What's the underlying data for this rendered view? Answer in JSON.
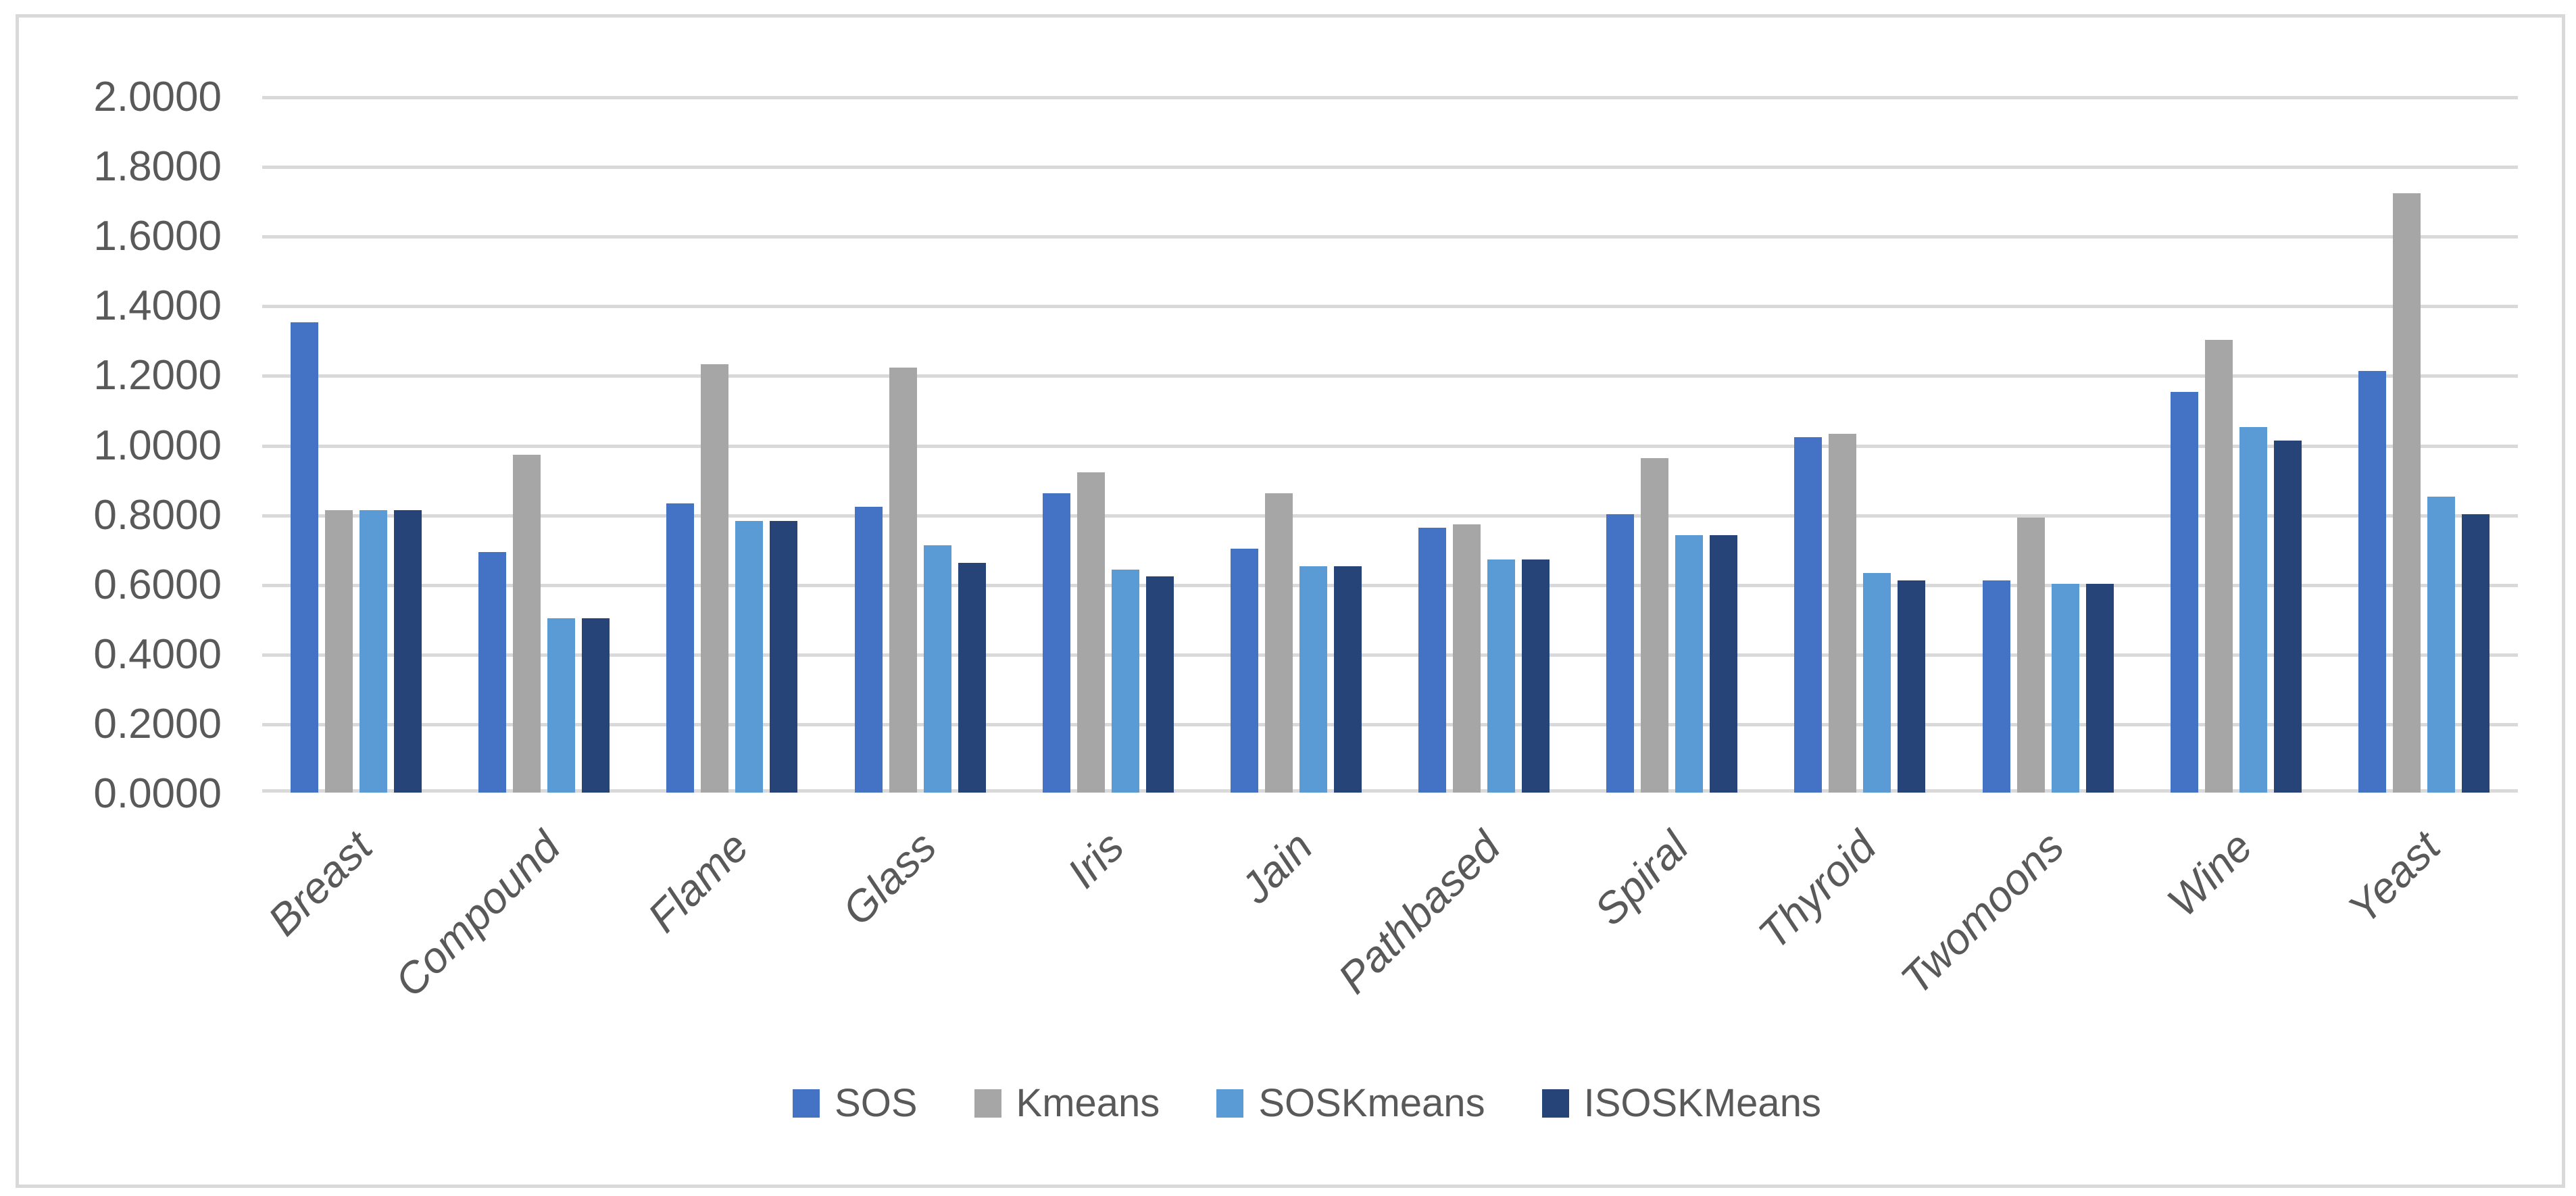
{
  "chart": {
    "background": "#FFFFFF",
    "border_color": "#D9D9D9",
    "gridline_color": "#D9D9D9",
    "text_color": "#595959"
  },
  "chart_data": {
    "type": "bar",
    "title": "",
    "xlabel": "",
    "ylabel": "",
    "categories": [
      "Breast",
      "Compound",
      "Flame",
      "Glass",
      "Iris",
      "Jain",
      "Pathbased",
      "Spiral",
      "Thyroid",
      "Twomoons",
      "Wine",
      "Yeast"
    ],
    "series": [
      {
        "name": "SOS",
        "color": "#4472C4",
        "values": [
          1.35,
          0.69,
          0.83,
          0.82,
          0.86,
          0.7,
          0.76,
          0.8,
          1.02,
          0.61,
          1.15,
          1.21
        ]
      },
      {
        "name": "Kmeans",
        "color": "#A6A6A6",
        "values": [
          0.81,
          0.97,
          1.23,
          1.22,
          0.92,
          0.86,
          0.77,
          0.96,
          1.03,
          0.79,
          1.3,
          1.72
        ]
      },
      {
        "name": "SOSKmeans",
        "color": "#5B9BD5",
        "values": [
          0.81,
          0.5,
          0.78,
          0.71,
          0.64,
          0.65,
          0.67,
          0.74,
          0.63,
          0.6,
          1.05,
          0.85
        ]
      },
      {
        "name": "ISOSKMeans",
        "color": "#264478",
        "values": [
          0.81,
          0.5,
          0.78,
          0.66,
          0.62,
          0.65,
          0.67,
          0.74,
          0.61,
          0.6,
          1.01,
          0.8
        ]
      }
    ],
    "ylim": [
      0.0,
      2.0
    ],
    "ytick_step": 0.2,
    "ytick_labels": [
      "0.0000",
      "0.2000",
      "0.4000",
      "0.6000",
      "0.8000",
      "1.0000",
      "1.2000",
      "1.4000",
      "1.6000",
      "1.8000",
      "2.0000"
    ],
    "grid": true,
    "legend_position": "bottom",
    "legend_entries": [
      "SOS",
      "Kmeans",
      "SOSKmeans",
      "ISOSKMeans"
    ]
  }
}
